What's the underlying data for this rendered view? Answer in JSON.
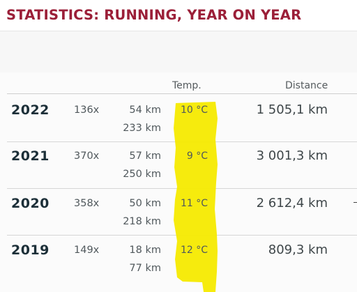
{
  "title": "STATISTICS: RUNNING, YEAR ON YEAR",
  "headers": {
    "temp": "Temp.",
    "distance": "Distance"
  },
  "rows": [
    {
      "year": "2022",
      "count": "136x",
      "dist_a": "54 km",
      "dist_b": "233 km",
      "temp": "10 °C",
      "total": "1 505,1 km"
    },
    {
      "year": "2021",
      "count": "370x",
      "dist_a": "57 km",
      "dist_b": "250 km",
      "temp": "9 °C",
      "total": "3 001,3 km"
    },
    {
      "year": "2020",
      "count": "358x",
      "dist_a": "50 km",
      "dist_b": "218 km",
      "temp": "11 °C",
      "total": "2 612,4 km"
    },
    {
      "year": "2019",
      "count": "149x",
      "dist_a": "18 km",
      "dist_b": "77 km",
      "temp": "12 °C",
      "total": "809,3 km"
    }
  ],
  "colors": {
    "title": "#9b1f38",
    "highlight": "#f6ea00"
  }
}
